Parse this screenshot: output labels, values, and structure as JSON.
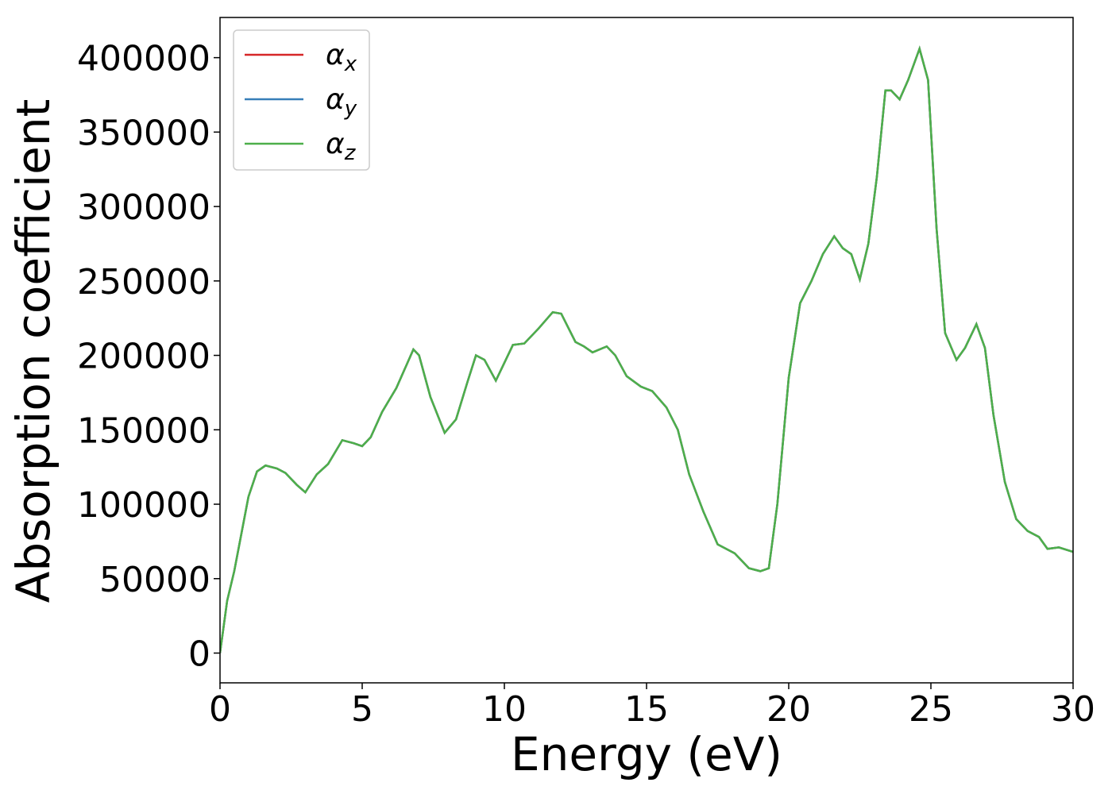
{
  "chart_data": {
    "type": "line",
    "x_label": "Energy (eV)",
    "y_label": "Absorption coefficient",
    "x": [
      0,
      0.25,
      0.5,
      0.75,
      1.0,
      1.3,
      1.6,
      2.0,
      2.3,
      2.7,
      3.0,
      3.4,
      3.8,
      4.3,
      4.7,
      5.0,
      5.3,
      5.7,
      6.2,
      6.8,
      7.0,
      7.4,
      7.9,
      8.3,
      8.7,
      9.0,
      9.3,
      9.7,
      10.0,
      10.3,
      10.7,
      11.2,
      11.7,
      12.0,
      12.5,
      12.8,
      13.1,
      13.6,
      13.9,
      14.3,
      14.8,
      15.2,
      15.7,
      16.1,
      16.5,
      17.0,
      17.5,
      18.1,
      18.6,
      19.0,
      19.3,
      19.6,
      20.0,
      20.4,
      20.8,
      21.2,
      21.6,
      21.9,
      22.2,
      22.5,
      22.8,
      23.1,
      23.4,
      23.6,
      23.9,
      24.2,
      24.6,
      24.9,
      25.2,
      25.5,
      25.9,
      26.2,
      26.6,
      26.9,
      27.2,
      27.6,
      28.0,
      28.4,
      28.8,
      29.1,
      29.5,
      30.0
    ],
    "series": [
      {
        "name": "αx",
        "color": "#d62728",
        "values": [
          0,
          35000,
          55000,
          80000,
          105000,
          122000,
          126000,
          124000,
          121000,
          113000,
          108000,
          120000,
          127000,
          143000,
          141000,
          139000,
          145000,
          162000,
          178000,
          204000,
          200000,
          172000,
          148000,
          157000,
          182000,
          200000,
          197000,
          183000,
          195000,
          207000,
          208000,
          218000,
          229000,
          228000,
          209000,
          206000,
          202000,
          206000,
          200000,
          186000,
          179000,
          176000,
          165000,
          150000,
          120000,
          95000,
          73000,
          67000,
          57000,
          55000,
          57000,
          100000,
          185000,
          235000,
          250000,
          268000,
          280000,
          272000,
          268000,
          251000,
          275000,
          320000,
          378000,
          378000,
          372000,
          385000,
          406000,
          385000,
          285000,
          215000,
          197000,
          205000,
          221000,
          205000,
          160000,
          115000,
          90000,
          82000,
          78000,
          70000,
          71000,
          68000
        ]
      },
      {
        "name": "αy",
        "color": "#377eb8",
        "values": [
          0,
          35000,
          55000,
          80000,
          105000,
          122000,
          126000,
          124000,
          121000,
          113000,
          108000,
          120000,
          127000,
          143000,
          141000,
          139000,
          145000,
          162000,
          178000,
          204000,
          200000,
          172000,
          148000,
          157000,
          182000,
          200000,
          197000,
          183000,
          195000,
          207000,
          208000,
          218000,
          229000,
          228000,
          209000,
          206000,
          202000,
          206000,
          200000,
          186000,
          179000,
          176000,
          165000,
          150000,
          120000,
          95000,
          73000,
          67000,
          57000,
          55000,
          57000,
          100000,
          185000,
          235000,
          250000,
          268000,
          280000,
          272000,
          268000,
          251000,
          275000,
          320000,
          378000,
          378000,
          372000,
          385000,
          406000,
          385000,
          285000,
          215000,
          197000,
          205000,
          221000,
          205000,
          160000,
          115000,
          90000,
          82000,
          78000,
          70000,
          71000,
          68000
        ]
      },
      {
        "name": "αz",
        "color": "#4daf4a",
        "values": [
          0,
          35000,
          55000,
          80000,
          105000,
          122000,
          126000,
          124000,
          121000,
          113000,
          108000,
          120000,
          127000,
          143000,
          141000,
          139000,
          145000,
          162000,
          178000,
          204000,
          200000,
          172000,
          148000,
          157000,
          182000,
          200000,
          197000,
          183000,
          195000,
          207000,
          208000,
          218000,
          229000,
          228000,
          209000,
          206000,
          202000,
          206000,
          200000,
          186000,
          179000,
          176000,
          165000,
          150000,
          120000,
          95000,
          73000,
          67000,
          57000,
          55000,
          57000,
          100000,
          185000,
          235000,
          250000,
          268000,
          280000,
          272000,
          268000,
          251000,
          275000,
          320000,
          378000,
          378000,
          372000,
          385000,
          406000,
          385000,
          285000,
          215000,
          197000,
          205000,
          221000,
          205000,
          160000,
          115000,
          90000,
          82000,
          78000,
          70000,
          71000,
          68000
        ]
      }
    ],
    "xlim": [
      0,
      30
    ],
    "xticks": [
      0,
      5,
      10,
      15,
      20,
      25,
      30
    ],
    "ylim": [
      -20000,
      427000
    ],
    "yticks": [
      0,
      50000,
      100000,
      150000,
      200000,
      250000,
      300000,
      350000,
      400000
    ],
    "legend": "upper left"
  }
}
